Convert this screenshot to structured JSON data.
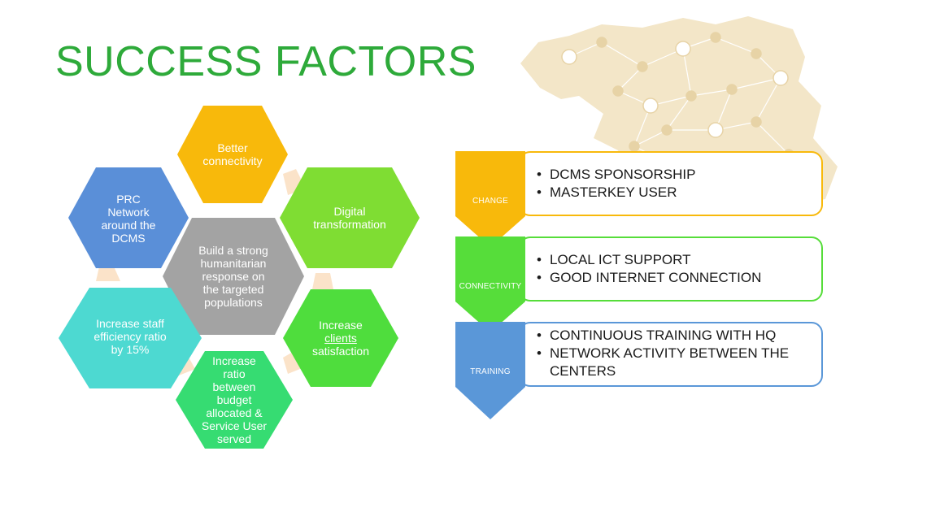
{
  "title": "SUCCESS FACTORS",
  "colors": {
    "title": "#2eaa3a",
    "map": "#f3e6c8",
    "map_nodes": "#e7d3a6",
    "connector": "#fbe3c9",
    "hex_orange": "#f8b90b",
    "hex_green": "#7fdd33",
    "hex_blue": "#5a8fd8",
    "hex_gray": "#a3a3a3",
    "hex_teal": "#4dd9d1",
    "hex_green2": "#4fdd3d",
    "hex_mint": "#36dc72",
    "step_change": "#f8b90b",
    "step_connectivity": "#56dd3a",
    "step_training": "#5a97d8"
  },
  "hexagons": [
    {
      "id": "better_connectivity",
      "label": "Better\nconnectivity"
    },
    {
      "id": "digital_transformation",
      "label": "Digital\ntransformation"
    },
    {
      "id": "prc_network",
      "label": "PRC\nNetwork\naround the\nDCMS"
    },
    {
      "id": "center",
      "label": "Build a strong\nhumanitarian\nresponse on\nthe targeted\npopulations"
    },
    {
      "id": "staff_efficiency",
      "label": "Increase staff\nefficiency ratio\nby 15%"
    },
    {
      "id": "clients_satisfaction",
      "label_pre": "Increase",
      "label_underline": "clients",
      "label_post": "satisfaction"
    },
    {
      "id": "budget_ratio",
      "label": "Increase\nratio\nbetween\nbudget\nallocated &\nService User\nserved"
    }
  ],
  "steps": [
    {
      "label": "CHANGE",
      "items": [
        "DCMS SPONSORSHIP",
        "MASTERKEY USER"
      ]
    },
    {
      "label": "CONNECTIVITY",
      "items": [
        "LOCAL ICT SUPPORT",
        "GOOD INTERNET CONNECTION"
      ]
    },
    {
      "label": "TRAINING",
      "items": [
        "CONTINUOUS TRAINING WITH HQ",
        "NETWORK ACTIVITY BETWEEN THE CENTERS"
      ]
    }
  ]
}
